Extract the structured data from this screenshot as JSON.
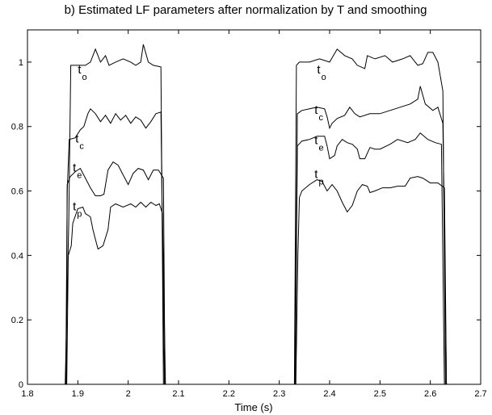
{
  "chart_data": {
    "type": "line",
    "title": "b) Estimated LF parameters after normalization by T and smoothing",
    "xlabel": "Time (s)",
    "ylabel": "",
    "xlim": [
      1.8,
      2.7
    ],
    "ylim": [
      0,
      1.1
    ],
    "xticks": [
      "1.8",
      "1.9",
      "2",
      "2.1",
      "2.2",
      "2.3",
      "2.4",
      "2.5",
      "2.6",
      "2.7"
    ],
    "xtick_values": [
      1.8,
      1.9,
      2.0,
      2.1,
      2.2,
      2.3,
      2.4,
      2.5,
      2.6,
      2.7
    ],
    "yticks": [
      "0",
      "0.2",
      "0.4",
      "0.6",
      "0.8",
      "1"
    ],
    "ytick_values": [
      0,
      0.2,
      0.4,
      0.6,
      0.8,
      1.0
    ],
    "grid": false,
    "series": [
      {
        "annotations": [
          {
            "main": "t",
            "sub": "o",
            "x": 1.9,
            "y": 0.965
          },
          {
            "main": "t",
            "sub": "o",
            "x": 2.375,
            "y": 0.965
          }
        ],
        "points": [
          [
            1.875,
            0
          ],
          [
            1.882,
            0.5
          ],
          [
            1.886,
            0.99
          ],
          [
            1.9,
            0.99
          ],
          [
            1.915,
            0.99
          ],
          [
            1.925,
            1.0
          ],
          [
            1.935,
            1.04
          ],
          [
            1.945,
            1.0
          ],
          [
            1.955,
            1.02
          ],
          [
            1.962,
            0.99
          ],
          [
            1.975,
            1.0
          ],
          [
            1.99,
            1.01
          ],
          [
            2.005,
            1.0
          ],
          [
            2.015,
            0.99
          ],
          [
            2.025,
            1.0
          ],
          [
            2.03,
            1.055
          ],
          [
            2.04,
            1.0
          ],
          [
            2.05,
            0.99
          ],
          [
            2.065,
            0.985
          ],
          [
            2.07,
            0
          ],
          [
            2.33,
            0
          ],
          [
            2.334,
            0.99
          ],
          [
            2.34,
            1.0
          ],
          [
            2.36,
            1.0
          ],
          [
            2.38,
            1.01
          ],
          [
            2.4,
            1.0
          ],
          [
            2.415,
            1.04
          ],
          [
            2.43,
            1.02
          ],
          [
            2.445,
            1.01
          ],
          [
            2.455,
            0.99
          ],
          [
            2.47,
            0.98
          ],
          [
            2.475,
            1.02
          ],
          [
            2.49,
            1.01
          ],
          [
            2.51,
            1.02
          ],
          [
            2.525,
            1.0
          ],
          [
            2.545,
            1.01
          ],
          [
            2.56,
            1.02
          ],
          [
            2.575,
            0.99
          ],
          [
            2.585,
            0.995
          ],
          [
            2.595,
            1.03
          ],
          [
            2.605,
            1.03
          ],
          [
            2.615,
            1.0
          ],
          [
            2.625,
            0.91
          ],
          [
            2.63,
            0
          ]
        ]
      },
      {
        "annotations": [
          {
            "main": "t",
            "sub": "c",
            "x": 1.895,
            "y": 0.75
          },
          {
            "main": "t",
            "sub": "c",
            "x": 2.37,
            "y": 0.84
          }
        ],
        "points": [
          [
            1.876,
            0
          ],
          [
            1.879,
            0.6
          ],
          [
            1.883,
            0.76
          ],
          [
            1.895,
            0.765
          ],
          [
            1.905,
            0.79
          ],
          [
            1.912,
            0.8
          ],
          [
            1.92,
            0.84
          ],
          [
            1.925,
            0.855
          ],
          [
            1.935,
            0.84
          ],
          [
            1.945,
            0.815
          ],
          [
            1.955,
            0.835
          ],
          [
            1.965,
            0.81
          ],
          [
            1.975,
            0.84
          ],
          [
            1.985,
            0.82
          ],
          [
            1.995,
            0.835
          ],
          [
            2.005,
            0.81
          ],
          [
            2.015,
            0.83
          ],
          [
            2.025,
            0.82
          ],
          [
            2.035,
            0.795
          ],
          [
            2.045,
            0.815
          ],
          [
            2.055,
            0.84
          ],
          [
            2.065,
            0.845
          ],
          [
            2.072,
            0
          ],
          [
            2.331,
            0
          ],
          [
            2.336,
            0.84
          ],
          [
            2.345,
            0.85
          ],
          [
            2.36,
            0.855
          ],
          [
            2.375,
            0.86
          ],
          [
            2.39,
            0.855
          ],
          [
            2.395,
            0.83
          ],
          [
            2.4,
            0.795
          ],
          [
            2.405,
            0.81
          ],
          [
            2.415,
            0.825
          ],
          [
            2.43,
            0.835
          ],
          [
            2.44,
            0.86
          ],
          [
            2.45,
            0.84
          ],
          [
            2.46,
            0.83
          ],
          [
            2.48,
            0.84
          ],
          [
            2.5,
            0.84
          ],
          [
            2.52,
            0.85
          ],
          [
            2.54,
            0.86
          ],
          [
            2.56,
            0.87
          ],
          [
            2.575,
            0.885
          ],
          [
            2.58,
            0.925
          ],
          [
            2.59,
            0.87
          ],
          [
            2.605,
            0.85
          ],
          [
            2.615,
            0.86
          ],
          [
            2.625,
            0.81
          ],
          [
            2.632,
            0
          ]
        ]
      },
      {
        "annotations": [
          {
            "main": "t",
            "sub": "e",
            "x": 1.89,
            "y": 0.66
          },
          {
            "main": "t",
            "sub": "e",
            "x": 2.37,
            "y": 0.745
          }
        ],
        "points": [
          [
            1.877,
            0
          ],
          [
            1.879,
            0.62
          ],
          [
            1.885,
            0.645
          ],
          [
            1.895,
            0.66
          ],
          [
            1.905,
            0.67
          ],
          [
            1.915,
            0.64
          ],
          [
            1.925,
            0.61
          ],
          [
            1.935,
            0.585
          ],
          [
            1.945,
            0.585
          ],
          [
            1.952,
            0.59
          ],
          [
            1.96,
            0.665
          ],
          [
            1.97,
            0.69
          ],
          [
            1.98,
            0.68
          ],
          [
            1.99,
            0.65
          ],
          [
            2.0,
            0.62
          ],
          [
            2.01,
            0.655
          ],
          [
            2.02,
            0.67
          ],
          [
            2.03,
            0.665
          ],
          [
            2.04,
            0.635
          ],
          [
            2.05,
            0.665
          ],
          [
            2.06,
            0.665
          ],
          [
            2.07,
            0.64
          ],
          [
            2.073,
            0
          ],
          [
            2.332,
            0
          ],
          [
            2.336,
            0.74
          ],
          [
            2.345,
            0.755
          ],
          [
            2.36,
            0.76
          ],
          [
            2.375,
            0.77
          ],
          [
            2.39,
            0.77
          ],
          [
            2.395,
            0.74
          ],
          [
            2.4,
            0.7
          ],
          [
            2.41,
            0.71
          ],
          [
            2.415,
            0.74
          ],
          [
            2.425,
            0.76
          ],
          [
            2.435,
            0.75
          ],
          [
            2.445,
            0.745
          ],
          [
            2.455,
            0.73
          ],
          [
            2.46,
            0.7
          ],
          [
            2.47,
            0.7
          ],
          [
            2.48,
            0.735
          ],
          [
            2.49,
            0.73
          ],
          [
            2.5,
            0.73
          ],
          [
            2.52,
            0.745
          ],
          [
            2.535,
            0.76
          ],
          [
            2.555,
            0.75
          ],
          [
            2.57,
            0.76
          ],
          [
            2.58,
            0.78
          ],
          [
            2.595,
            0.76
          ],
          [
            2.61,
            0.75
          ],
          [
            2.622,
            0.745
          ],
          [
            2.628,
            0
          ]
        ]
      },
      {
        "annotations": [
          {
            "main": "t",
            "sub": "p",
            "x": 1.89,
            "y": 0.54
          },
          {
            "main": "t",
            "sub": "p",
            "x": 2.37,
            "y": 0.64
          }
        ],
        "points": [
          [
            1.878,
            0
          ],
          [
            1.881,
            0.4
          ],
          [
            1.887,
            0.43
          ],
          [
            1.89,
            0.5
          ],
          [
            1.9,
            0.545
          ],
          [
            1.91,
            0.55
          ],
          [
            1.915,
            0.53
          ],
          [
            1.925,
            0.52
          ],
          [
            1.93,
            0.48
          ],
          [
            1.935,
            0.45
          ],
          [
            1.94,
            0.42
          ],
          [
            1.95,
            0.43
          ],
          [
            1.96,
            0.48
          ],
          [
            1.965,
            0.55
          ],
          [
            1.975,
            0.56
          ],
          [
            1.99,
            0.55
          ],
          [
            2.005,
            0.56
          ],
          [
            2.015,
            0.55
          ],
          [
            2.025,
            0.565
          ],
          [
            2.035,
            0.55
          ],
          [
            2.045,
            0.565
          ],
          [
            2.055,
            0.555
          ],
          [
            2.062,
            0.56
          ],
          [
            2.068,
            0.53
          ],
          [
            2.074,
            0
          ],
          [
            2.333,
            0
          ],
          [
            2.337,
            0.4
          ],
          [
            2.34,
            0.58
          ],
          [
            2.345,
            0.6
          ],
          [
            2.36,
            0.62
          ],
          [
            2.375,
            0.635
          ],
          [
            2.385,
            0.63
          ],
          [
            2.395,
            0.6
          ],
          [
            2.405,
            0.62
          ],
          [
            2.415,
            0.6
          ],
          [
            2.425,
            0.565
          ],
          [
            2.435,
            0.535
          ],
          [
            2.445,
            0.555
          ],
          [
            2.455,
            0.6
          ],
          [
            2.465,
            0.62
          ],
          [
            2.475,
            0.615
          ],
          [
            2.48,
            0.595
          ],
          [
            2.49,
            0.6
          ],
          [
            2.505,
            0.61
          ],
          [
            2.52,
            0.61
          ],
          [
            2.535,
            0.615
          ],
          [
            2.55,
            0.615
          ],
          [
            2.56,
            0.64
          ],
          [
            2.575,
            0.645
          ],
          [
            2.585,
            0.64
          ],
          [
            2.6,
            0.625
          ],
          [
            2.615,
            0.625
          ],
          [
            2.628,
            0.61
          ],
          [
            2.632,
            0
          ]
        ]
      }
    ]
  }
}
